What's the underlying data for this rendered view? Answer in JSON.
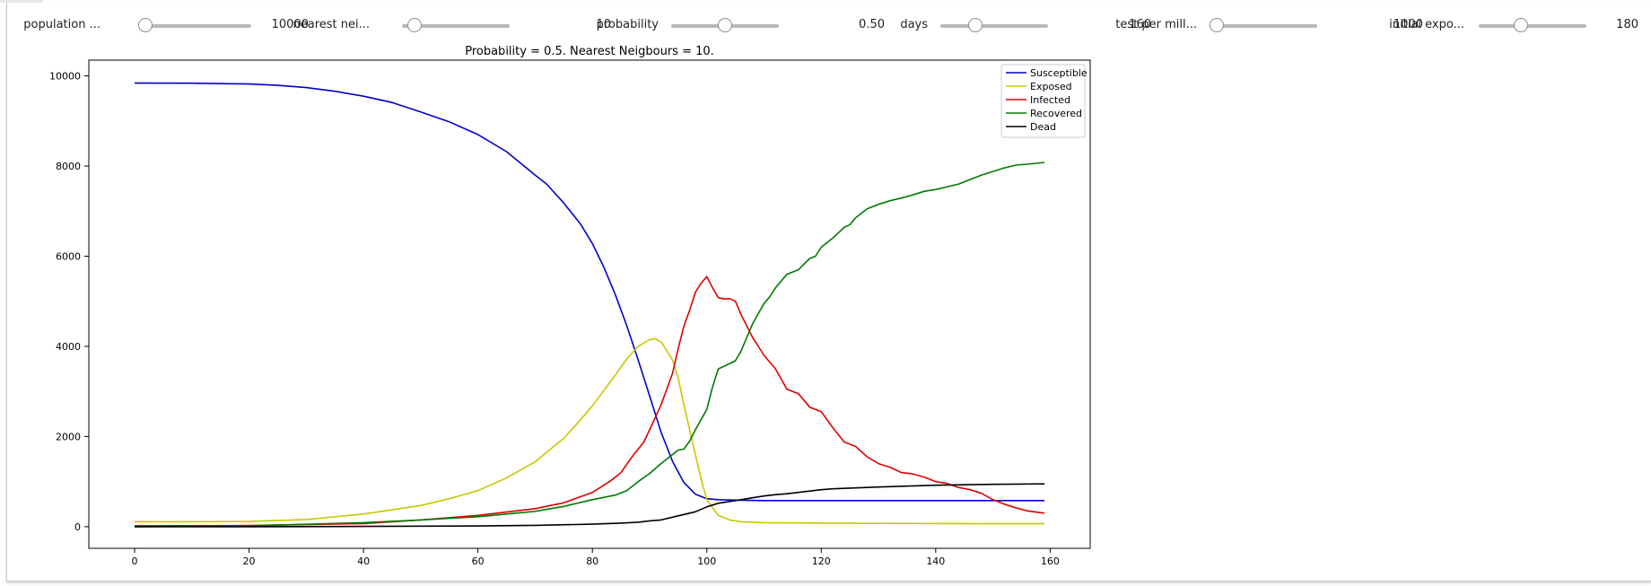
{
  "controls": [
    {
      "label": "population ...",
      "value": "10000",
      "pos": 0.0
    },
    {
      "label": "nearest nei...",
      "value": "10",
      "pos": 0.0
    },
    {
      "label": "probability",
      "value": "0.50",
      "pos": 0.5
    },
    {
      "label": "days",
      "value": "160",
      "pos": 0.27
    },
    {
      "label": "test per mill...",
      "value": "1000",
      "pos": 0.06
    },
    {
      "label": "initial expo...",
      "value": "180",
      "pos": 0.35
    }
  ],
  "colors": {
    "Susceptible": "#0000cc",
    "Exposed": "#c8c800",
    "Infected": "#e00000",
    "Recovered": "#007a00",
    "Dead": "#000000"
  },
  "chart_data": {
    "type": "line",
    "title": "Probability = 0.5. Nearest Neigbours = 10.",
    "xlim": [
      -8,
      167
    ],
    "ylim": [
      -480,
      10350
    ],
    "xticks": [
      0,
      20,
      40,
      60,
      80,
      100,
      120,
      140,
      160
    ],
    "yticks": [
      0,
      2000,
      4000,
      6000,
      8000,
      10000
    ],
    "legend_position": "top-right",
    "grid": false,
    "series": [
      {
        "name": "Susceptible",
        "color": "#0000cc",
        "x": [
          0,
          10,
          20,
          25,
          30,
          35,
          40,
          45,
          50,
          55,
          60,
          65,
          70,
          72,
          75,
          78,
          80,
          82,
          84,
          86,
          88,
          90,
          92,
          94,
          96,
          98,
          100,
          102,
          105,
          110,
          120,
          130,
          140,
          150,
          159
        ],
        "y": [
          9840,
          9838,
          9820,
          9790,
          9740,
          9660,
          9550,
          9410,
          9200,
          8980,
          8700,
          8320,
          7800,
          7600,
          7180,
          6700,
          6280,
          5760,
          5150,
          4460,
          3700,
          2900,
          2100,
          1450,
          980,
          720,
          620,
          600,
          590,
          580,
          580,
          580,
          580,
          580,
          580
        ]
      },
      {
        "name": "Exposed",
        "color": "#c8c800",
        "x": [
          0,
          10,
          20,
          30,
          40,
          50,
          55,
          60,
          65,
          70,
          75,
          78,
          80,
          82,
          84,
          86,
          88,
          90,
          91,
          92,
          94,
          95,
          96,
          97,
          98,
          99,
          100,
          102,
          104,
          106,
          110,
          120,
          140,
          159
        ],
        "y": [
          110,
          110,
          115,
          160,
          280,
          470,
          620,
          800,
          1080,
          1440,
          1960,
          2380,
          2680,
          3020,
          3360,
          3720,
          4000,
          4150,
          4170,
          4100,
          3700,
          3300,
          2700,
          2150,
          1600,
          1050,
          600,
          250,
          150,
          110,
          90,
          80,
          70,
          65
        ]
      },
      {
        "name": "Infected",
        "color": "#e00000",
        "x": [
          0,
          20,
          40,
          50,
          60,
          70,
          75,
          80,
          83,
          85,
          87,
          89,
          90,
          92,
          94,
          95,
          96,
          97,
          98,
          99,
          100,
          101,
          102,
          103,
          104,
          105,
          106,
          108,
          110,
          112,
          114,
          116,
          118,
          120,
          122,
          124,
          126,
          128,
          130,
          132,
          134,
          136,
          138,
          140,
          142,
          144,
          146,
          148,
          150,
          152,
          154,
          156,
          159
        ],
        "y": [
          20,
          25,
          70,
          150,
          250,
          400,
          530,
          760,
          1000,
          1200,
          1560,
          1880,
          2150,
          2700,
          3400,
          3950,
          4450,
          4800,
          5200,
          5400,
          5550,
          5300,
          5080,
          5050,
          5060,
          5000,
          4700,
          4200,
          3800,
          3500,
          3050,
          2950,
          2650,
          2550,
          2200,
          1880,
          1780,
          1550,
          1400,
          1320,
          1200,
          1170,
          1100,
          1000,
          960,
          870,
          820,
          740,
          600,
          500,
          420,
          350,
          300
        ]
      },
      {
        "name": "Recovered",
        "color": "#007a00",
        "x": [
          0,
          20,
          40,
          50,
          60,
          70,
          75,
          80,
          84,
          86,
          88,
          90,
          92,
          94,
          95,
          96,
          97,
          98,
          100,
          101,
          102,
          104,
          105,
          106,
          108,
          110,
          111,
          112,
          114,
          115,
          116,
          118,
          119,
          120,
          121,
          122,
          124,
          125,
          126,
          128,
          130,
          132,
          134,
          136,
          138,
          140,
          142,
          144,
          146,
          148,
          150,
          152,
          154,
          156,
          159
        ],
        "y": [
          0,
          20,
          90,
          150,
          220,
          340,
          450,
          600,
          700,
          800,
          1000,
          1180,
          1400,
          1600,
          1700,
          1720,
          1900,
          2150,
          2600,
          3100,
          3500,
          3620,
          3680,
          3900,
          4500,
          4950,
          5100,
          5300,
          5600,
          5650,
          5700,
          5950,
          6000,
          6200,
          6300,
          6400,
          6640,
          6700,
          6850,
          7050,
          7150,
          7230,
          7290,
          7360,
          7440,
          7480,
          7540,
          7600,
          7700,
          7800,
          7880,
          7960,
          8020,
          8040,
          8080
        ]
      },
      {
        "name": "Dead",
        "color": "#000000",
        "x": [
          0,
          20,
          40,
          60,
          70,
          80,
          85,
          88,
          90,
          92,
          94,
          96,
          98,
          100,
          102,
          104,
          106,
          108,
          110,
          112,
          114,
          116,
          118,
          120,
          122,
          124,
          126,
          128,
          130,
          135,
          140,
          145,
          150,
          155,
          159
        ],
        "y": [
          0,
          0,
          5,
          15,
          30,
          55,
          80,
          100,
          130,
          150,
          210,
          270,
          330,
          440,
          520,
          560,
          600,
          640,
          680,
          710,
          730,
          760,
          790,
          820,
          840,
          850,
          860,
          870,
          880,
          900,
          920,
          930,
          940,
          945,
          950
        ]
      }
    ]
  }
}
